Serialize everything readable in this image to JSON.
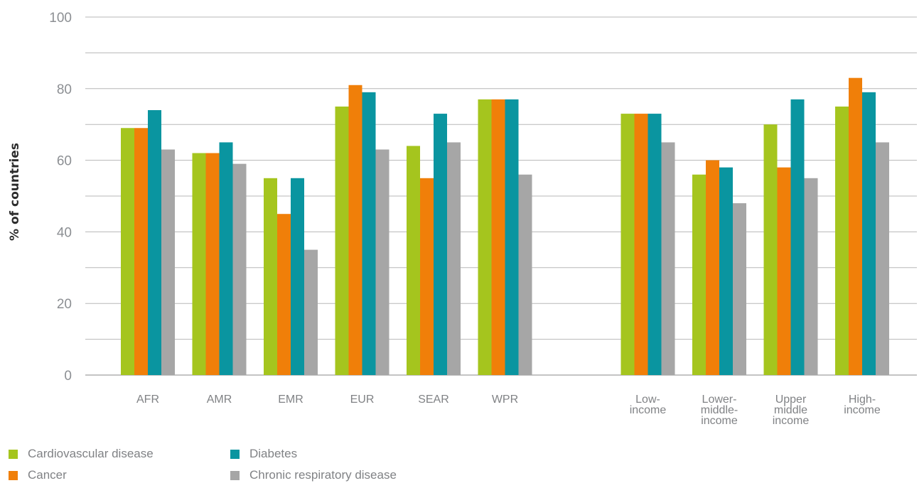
{
  "chart_data": {
    "type": "bar",
    "ylabel": "% of countries",
    "ylim": [
      0,
      100
    ],
    "yticks": [
      "0",
      "20",
      "40",
      "60",
      "80",
      "100"
    ],
    "grid": true,
    "legend_position": "bottom-left",
    "categories": [
      [
        "AFR"
      ],
      [
        "AMR"
      ],
      [
        "EMR"
      ],
      [
        "EUR"
      ],
      [
        "SEAR"
      ],
      [
        "WPR"
      ],
      [
        "Low-",
        "income"
      ],
      [
        "Lower-",
        "middle-",
        "income"
      ],
      [
        "Upper",
        "middle",
        "income"
      ],
      [
        "High-",
        "income"
      ]
    ],
    "series": [
      {
        "name": "Cardiovascular disease",
        "color": "#a5c51e",
        "values": [
          69,
          62,
          55,
          75,
          64,
          77,
          73,
          56,
          70,
          75
        ]
      },
      {
        "name": "Cancer",
        "color": "#f07f09",
        "values": [
          69,
          62,
          45,
          81,
          55,
          77,
          73,
          60,
          58,
          83
        ]
      },
      {
        "name": "Diabetes",
        "color": "#0a95a0",
        "values": [
          74,
          65,
          55,
          79,
          73,
          77,
          73,
          58,
          77,
          79
        ]
      },
      {
        "name": "Chronic respiratory disease",
        "color": "#a6a6a6",
        "values": [
          63,
          59,
          35,
          63,
          65,
          56,
          65,
          48,
          55,
          65
        ]
      }
    ]
  }
}
